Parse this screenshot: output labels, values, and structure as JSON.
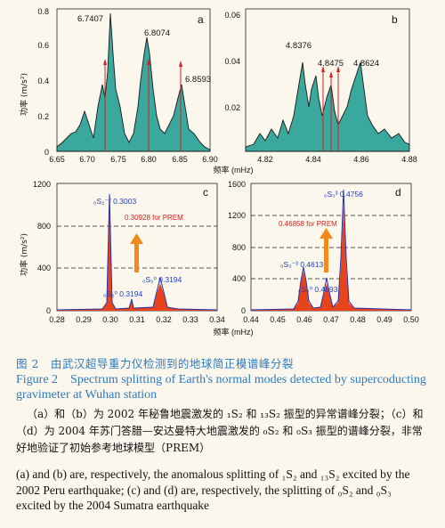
{
  "figure": {
    "panels": [
      {
        "letter": "a",
        "ylabel": "功率 (m/s²)",
        "xticks": [
          "6.65",
          "6.70",
          "6.75",
          "6.80",
          "6.85",
          "6.90"
        ],
        "yticks": [
          "0",
          "0.2",
          "0.4",
          "0.6",
          "0.8"
        ],
        "peaks": [
          "6.7407",
          "6.8074",
          "6.8593"
        ]
      },
      {
        "letter": "b",
        "xticks": [
          "4.82",
          "4.84",
          "4.86",
          "4.88"
        ],
        "yticks": [
          "0.02",
          "0.04",
          "0.06"
        ],
        "peaks": [
          "4.8376",
          "4.8475",
          "4.8624"
        ]
      },
      {
        "letter": "c",
        "ylabel": "功率 (m/s²)",
        "xticks": [
          "0.28",
          "0.29",
          "0.30",
          "0.31",
          "0.32",
          "0.33",
          "0.34"
        ],
        "yticks": [
          "0",
          "400",
          "800",
          "1200"
        ],
        "mode_labels": [
          "₀S₂⁻² 0.3003",
          "₀S₂⁰ 0.3194",
          "₀S₂⁰ 0.3194"
        ],
        "prem_label": "0.30928 for PREM"
      },
      {
        "letter": "d",
        "xticks": [
          "0.44",
          "0.45",
          "0.46",
          "0.47",
          "0.48",
          "0.49",
          "0.50"
        ],
        "yticks": [
          "0",
          "400",
          "800",
          "1200",
          "1600"
        ],
        "mode_labels": [
          "₀S₃³ 0.4756",
          "₀S₃⁻³ 0.4613",
          "₀S₃⁰ 0.4693"
        ],
        "prem_label": "0.46858 for PREM"
      }
    ],
    "xlabel_top": "频率 (mHz)",
    "xlabel_bottom": "频率 (mHz)"
  },
  "caption": {
    "cn_title": "图 2　由武汉超导重力仪检测到的地球简正模谱峰分裂",
    "en_title": "Figure 2　Spectrum splitting of Earth's normal modes detected by supercoducting gravimeter at Wuhan station",
    "cn_body": "（a）和（b）为 2002 年秘鲁地震激发的 ₁S₂ 和 ₁₃S₂ 振型的异常谱峰分裂；（c）和（d）为 2004 年苏门答腊—安达曼特大地震激发的 ₀S₂ 和 ₀S₃ 振型的谱峰分裂，非常好地验证了初始参考地球模型（PREM）",
    "en_body": "(a) and (b) are, respectively, the anomalous splitting of ₁S₂ and ₁₃S₂ excited by the 2002 Peru earthquake; (c) and (d) are, respectively, the splitting of ₀S₂ and ₀S₃ excited by the 2004 Sumatra earthquake"
  }
}
